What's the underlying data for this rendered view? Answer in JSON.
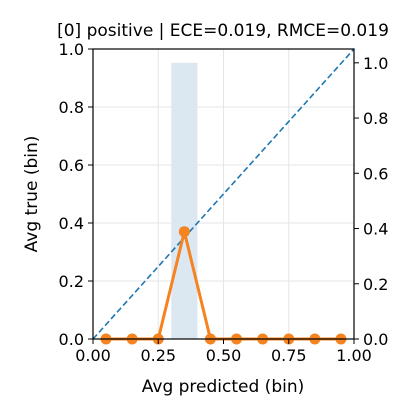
{
  "chart_data": {
    "type": "line",
    "title": "[0] positive | ECE=0.019, RMCE=0.019",
    "xlabel": "Avg predicted (bin)",
    "ylabel": "Avg true (bin)",
    "xlim": [
      0,
      1
    ],
    "ylim": [
      0,
      1
    ],
    "ylim_right": [
      0,
      1.05
    ],
    "x_ticks": [
      "0.00",
      "0.25",
      "0.50",
      "0.75",
      "1.00"
    ],
    "y_ticks": [
      "0.0",
      "0.2",
      "0.4",
      "0.6",
      "0.8",
      "1.0"
    ],
    "y_right_ticks": [
      "0.0",
      "0.2",
      "0.4",
      "0.6",
      "0.8",
      "1.0"
    ],
    "grid": true,
    "legend": "none",
    "series": [
      {
        "x": [
          0.05,
          0.15,
          0.25,
          0.35,
          0.45,
          0.55,
          0.65,
          0.75,
          0.85,
          0.95
        ],
        "values": [
          0,
          0,
          0,
          0.37,
          0,
          0,
          0,
          0,
          0,
          0
        ],
        "color": "#f5831f",
        "marker": "circle"
      },
      {
        "x": [
          0,
          1
        ],
        "values": [
          0,
          1
        ],
        "color": "#1f77b4",
        "style": "dashed"
      }
    ],
    "histogram": {
      "axis": "right",
      "bins": [
        [
          0.3,
          0.4,
          1.0
        ]
      ],
      "color": "#dbe7f1"
    }
  }
}
